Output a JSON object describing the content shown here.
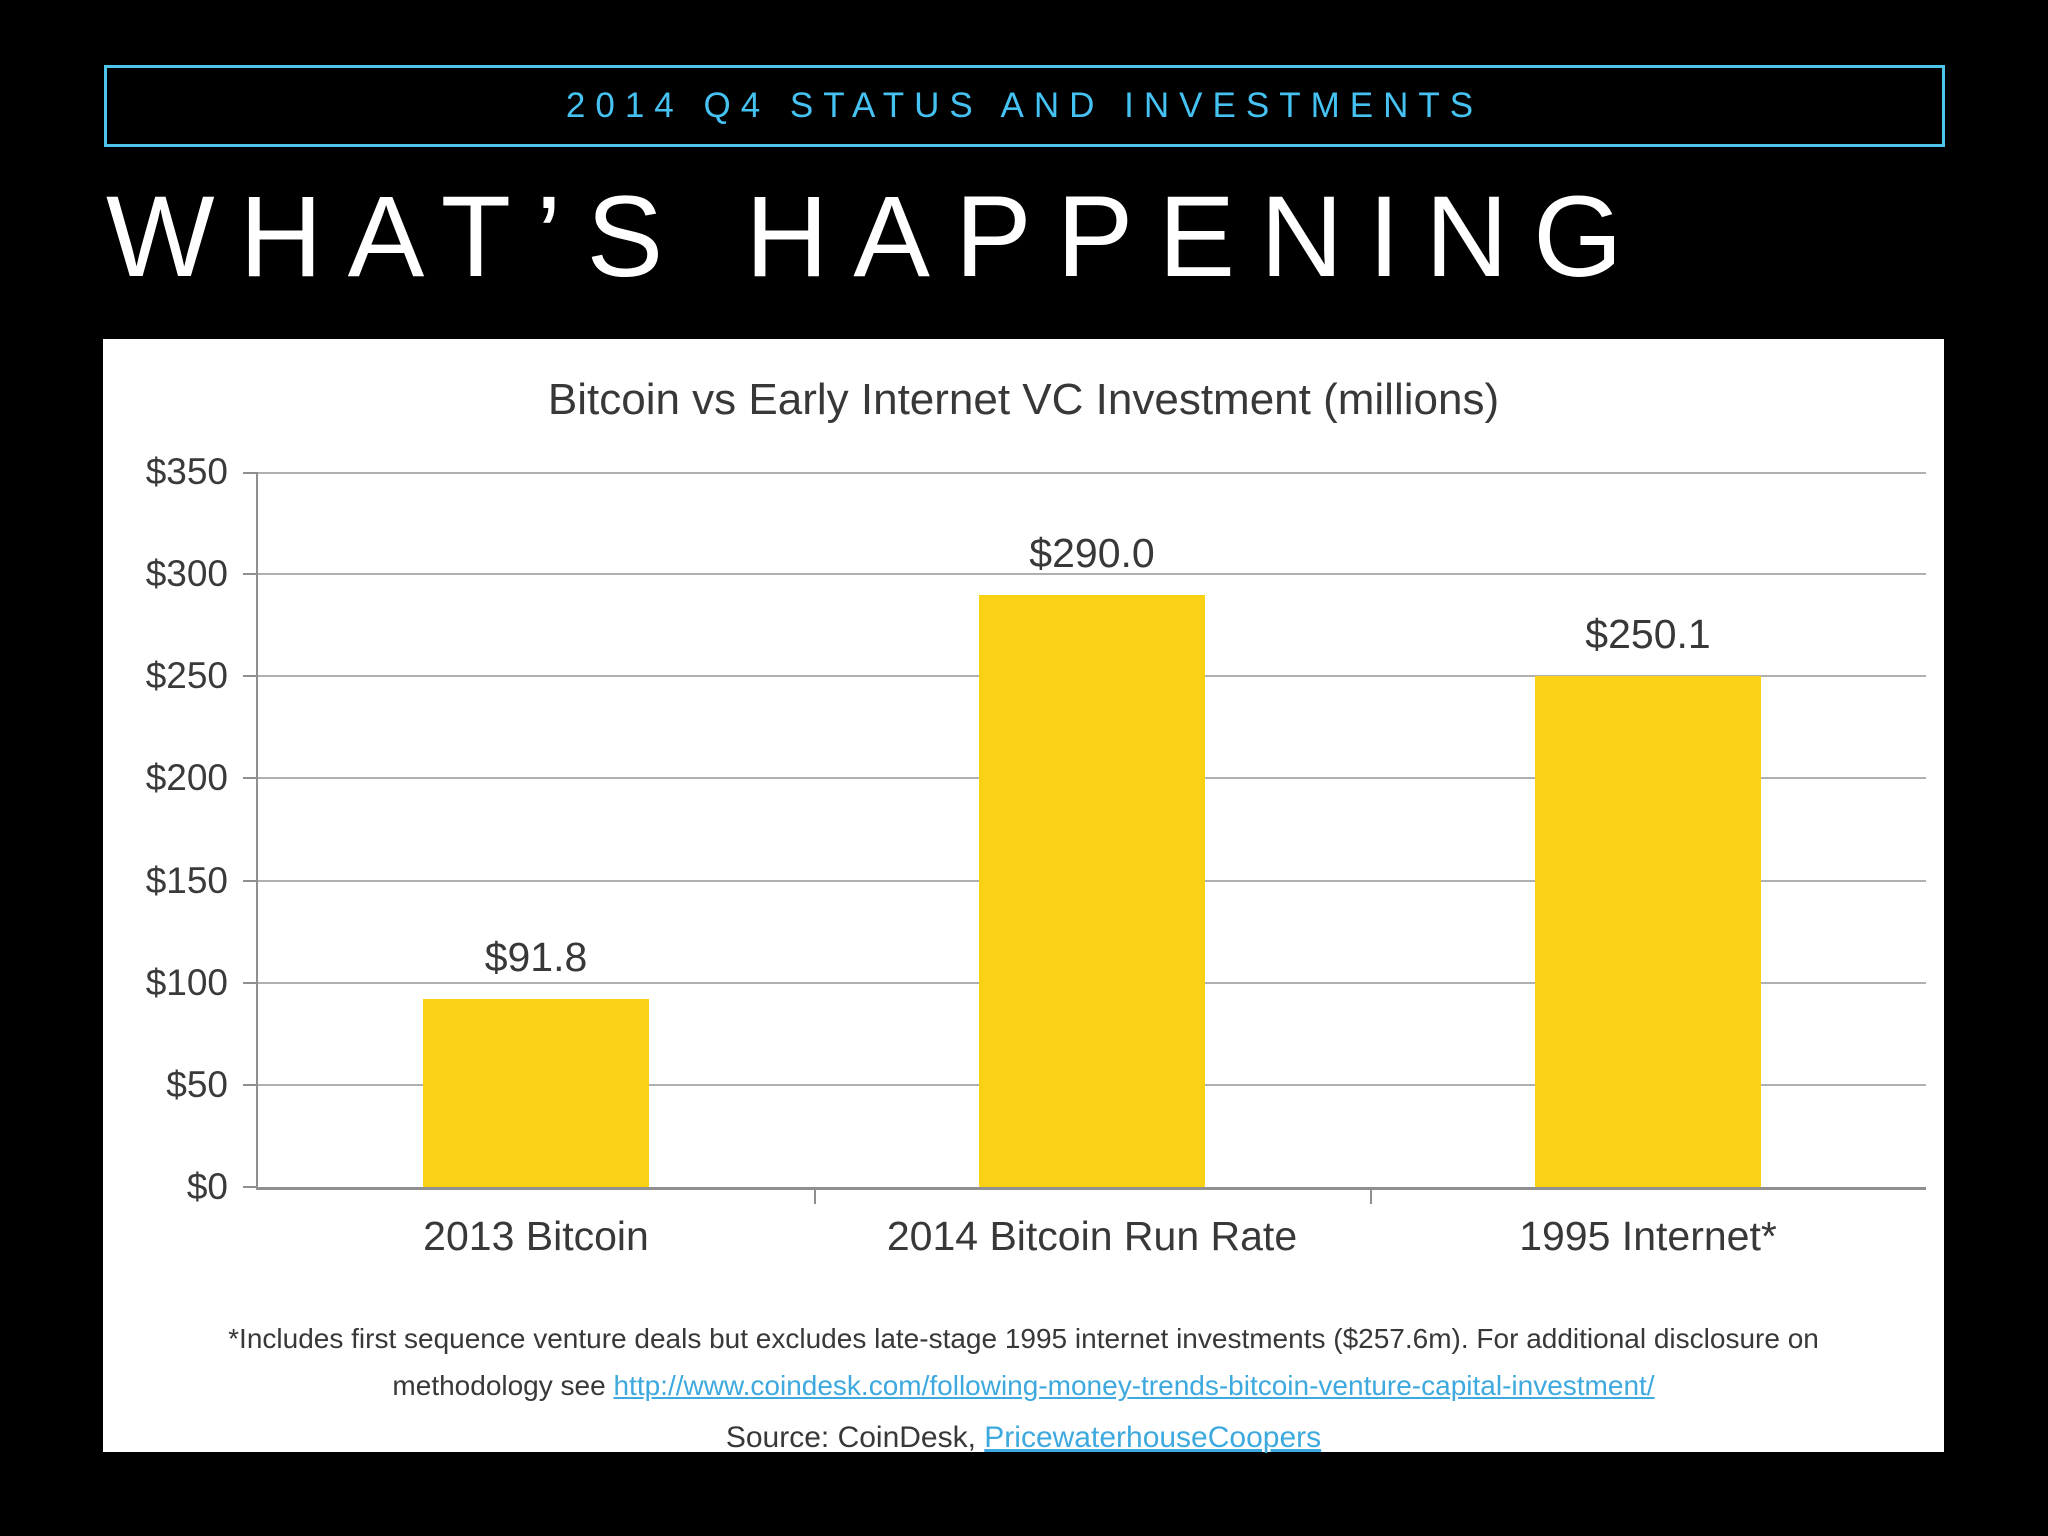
{
  "slide": {
    "kicker": "2014 Q4 STATUS AND INVESTMENTS",
    "title": "WHAT’S HAPPENING"
  },
  "chart_data": {
    "type": "bar",
    "title": "Bitcoin vs Early Internet VC Investment (millions)",
    "categories": [
      "2013 Bitcoin",
      "2014 Bitcoin Run Rate",
      "1995 Internet*"
    ],
    "values": [
      91.8,
      290.0,
      250.1
    ],
    "value_labels": [
      "$91.8",
      "$290.0",
      "$250.1"
    ],
    "y_ticks": [
      "$350",
      "$300",
      "$250",
      "$200",
      "$150",
      "$100",
      "$50",
      "$0"
    ],
    "ylim": [
      0,
      350
    ],
    "grid": true,
    "legend": "none",
    "bar_color": "#FBD116",
    "footnote_line1": "*Includes first sequence venture deals but excludes late-stage 1995 internet investments ($257.6m). For additional disclosure on",
    "footnote_prefix": "methodology see ",
    "footnote_link": "http://www.coindesk.com/following-money-trends-bitcoin-venture-capital-investment/",
    "source_prefix": "Source: CoinDesk, ",
    "source_link": "PricewaterhouseCoopers"
  },
  "colors": {
    "background": "#000000",
    "accent_cyan": "#46C2F2",
    "bar_yellow": "#FBD116",
    "link_blue": "#3EA9DE"
  }
}
